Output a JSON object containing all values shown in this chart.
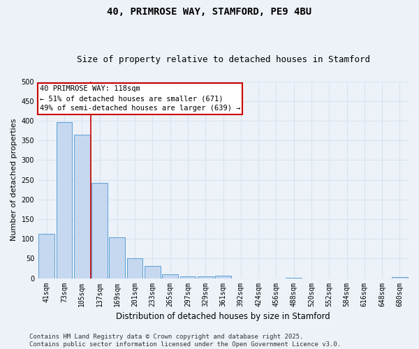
{
  "title_line1": "40, PRIMROSE WAY, STAMFORD, PE9 4BU",
  "title_line2": "Size of property relative to detached houses in Stamford",
  "xlabel": "Distribution of detached houses by size in Stamford",
  "ylabel": "Number of detached properties",
  "categories": [
    "41sqm",
    "73sqm",
    "105sqm",
    "137sqm",
    "169sqm",
    "201sqm",
    "233sqm",
    "265sqm",
    "297sqm",
    "329sqm",
    "361sqm",
    "392sqm",
    "424sqm",
    "456sqm",
    "488sqm",
    "520sqm",
    "552sqm",
    "584sqm",
    "616sqm",
    "648sqm",
    "680sqm"
  ],
  "values": [
    113,
    397,
    365,
    243,
    104,
    51,
    31,
    9,
    5,
    4,
    7,
    0,
    0,
    0,
    1,
    0,
    0,
    0,
    0,
    0,
    2
  ],
  "bar_color": "#c5d8f0",
  "bar_edge_color": "#5a9fd4",
  "vline_pos": 2.5,
  "vline_color": "#cc0000",
  "ylim": [
    0,
    500
  ],
  "yticks": [
    0,
    50,
    100,
    150,
    200,
    250,
    300,
    350,
    400,
    450,
    500
  ],
  "annotation_text": "40 PRIMROSE WAY: 118sqm\n← 51% of detached houses are smaller (671)\n49% of semi-detached houses are larger (639) →",
  "annotation_box_color": "#ffffff",
  "annotation_box_edge": "#cc0000",
  "footer_line1": "Contains HM Land Registry data © Crown copyright and database right 2025.",
  "footer_line2": "Contains public sector information licensed under the Open Government Licence v3.0.",
  "bg_color": "#edf2f9",
  "grid_color": "#d8e4f0",
  "title_fontsize": 10,
  "subtitle_fontsize": 9,
  "tick_fontsize": 7,
  "ylabel_fontsize": 8,
  "xlabel_fontsize": 8.5,
  "annotation_fontsize": 7.5,
  "footer_fontsize": 6.5
}
